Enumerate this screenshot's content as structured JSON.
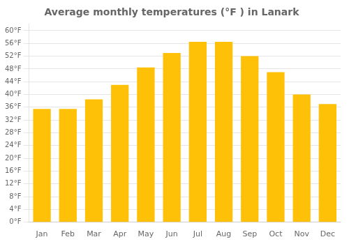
{
  "chart_data": {
    "type": "bar",
    "title": "Average monthly temperatures (°F ) in Lanark",
    "categories": [
      "Jan",
      "Feb",
      "Mar",
      "Apr",
      "May",
      "Jun",
      "Jul",
      "Aug",
      "Sep",
      "Oct",
      "Nov",
      "Dec"
    ],
    "values": [
      35.5,
      35.5,
      38.5,
      43.0,
      48.5,
      53.0,
      56.5,
      56.5,
      52.0,
      47.0,
      40.0,
      37.0
    ],
    "color": "#FFC107",
    "ylim": [
      0,
      62
    ],
    "yticks": [
      {
        "value": 0,
        "label": "0°F"
      },
      {
        "value": 4,
        "label": "4°F"
      },
      {
        "value": 8,
        "label": "8°F"
      },
      {
        "value": 12,
        "label": "12°F"
      },
      {
        "value": 16,
        "label": "16°F"
      },
      {
        "value": 20,
        "label": "20°F"
      },
      {
        "value": 24,
        "label": "24°F"
      },
      {
        "value": 28,
        "label": "28°F"
      },
      {
        "value": 32,
        "label": "32°F"
      },
      {
        "value": 36,
        "label": "36°F"
      },
      {
        "value": 40,
        "label": "40°F"
      },
      {
        "value": 44,
        "label": "44°F"
      },
      {
        "value": 48,
        "label": "48°F"
      },
      {
        "value": 52,
        "label": "52°F"
      },
      {
        "value": 56,
        "label": "56°F"
      },
      {
        "value": 60,
        "label": "60°F"
      }
    ],
    "grid": true
  }
}
